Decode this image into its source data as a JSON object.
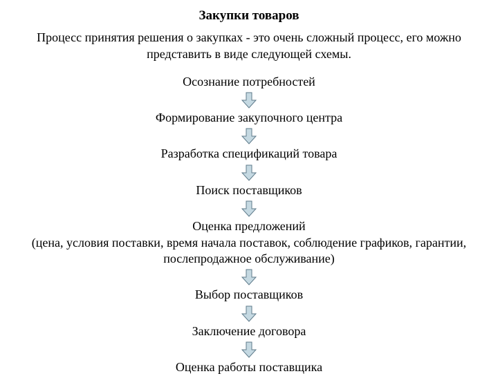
{
  "title": "Закупки товаров",
  "subtitle": "Процесс принятия решения о закупках - это очень сложный процесс, его можно представить в виде следующей схемы.",
  "steps": [
    "Осознание потребностей",
    "Формирование закупочного центра",
    "Разработка спецификаций товара",
    "Поиск поставщиков",
    "Оценка предложений\n(цена, условия поставки, время начала поставок, соблюдение графиков, гарантии, послепродажное обслуживание)",
    "Выбор поставщиков",
    "Заключение договора",
    "Оценка работы поставщика"
  ],
  "arrow": {
    "fill_color": "#c5d9e2",
    "stroke_color": "#5e7a8a",
    "stroke_width": 1,
    "width": 22,
    "height": 24
  },
  "background_color": "#ffffff",
  "text_color": "#000000",
  "title_fontsize": 19,
  "body_fontsize": 18,
  "font_family": "Times New Roman"
}
